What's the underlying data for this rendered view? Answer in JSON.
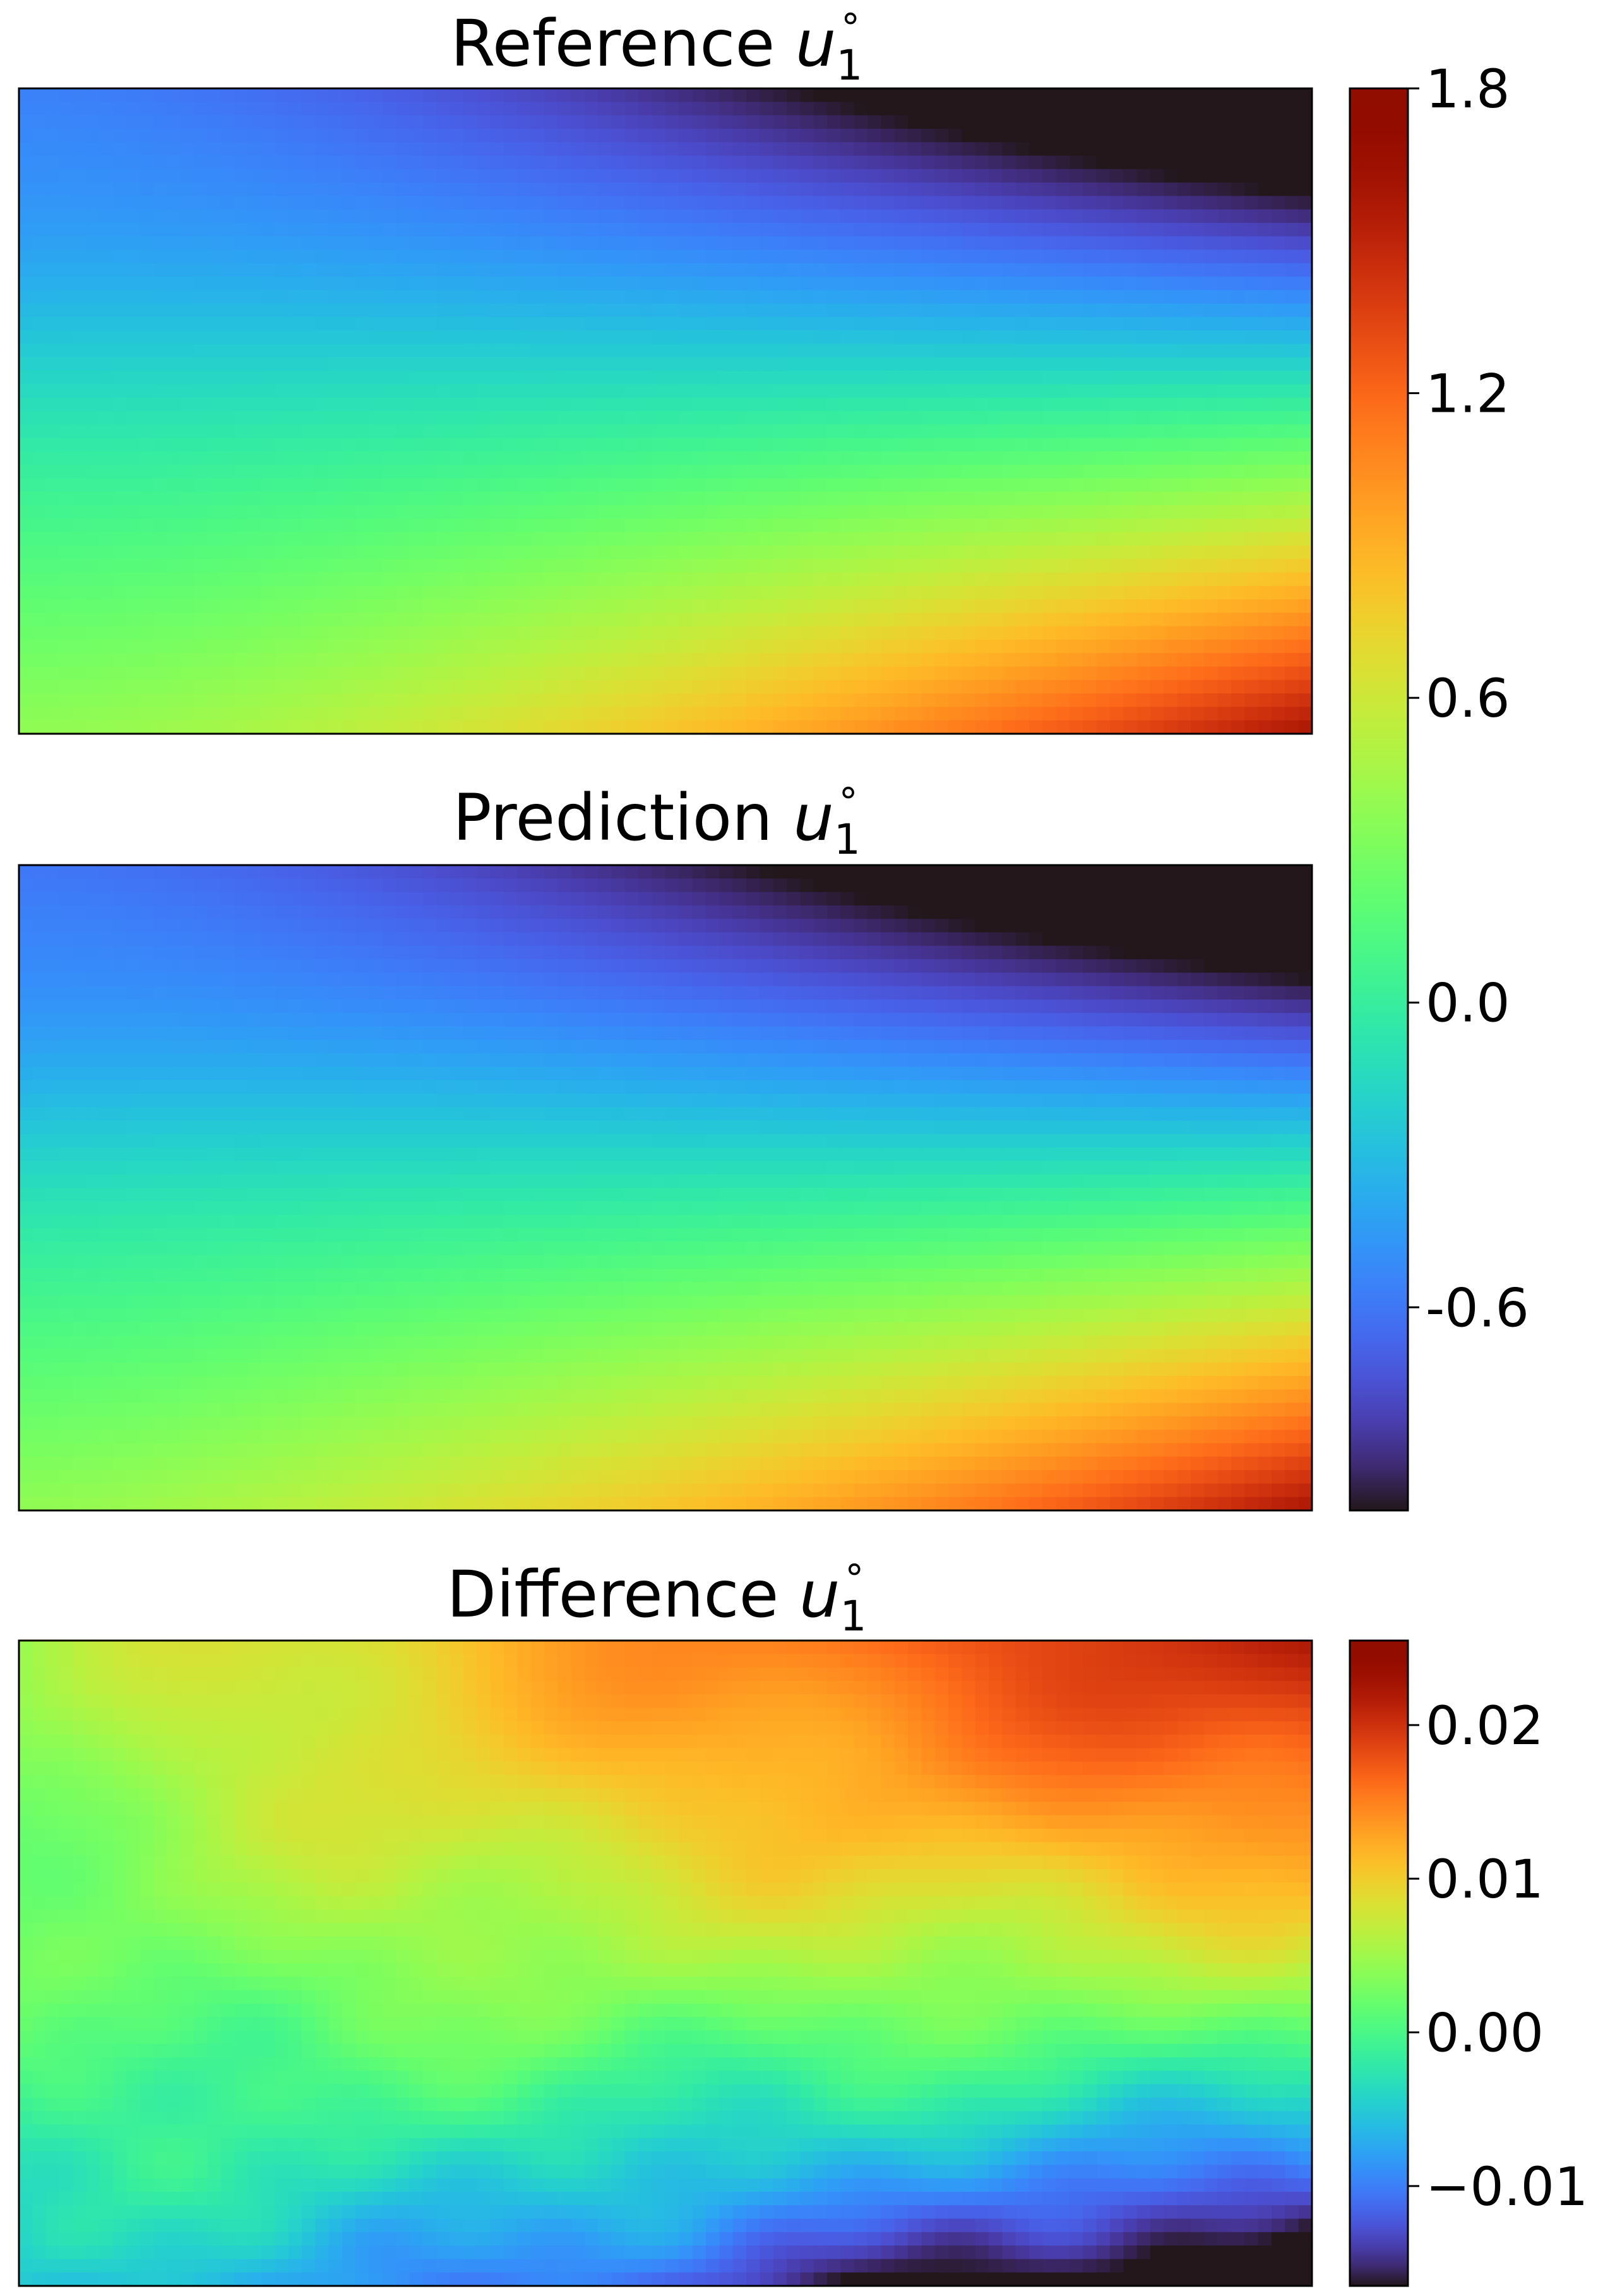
{
  "chart_data": [
    {
      "type": "heatmap",
      "title": "Reference",
      "title_symbol": "u",
      "title_subscript": "1",
      "title_superscript": "∘",
      "colormap": "turbo",
      "field": "reference",
      "vmin": -1.0,
      "vmax": 1.8,
      "colorbar": {
        "ticks": [
          1.8,
          1.2,
          0.6,
          0.0,
          -0.6
        ],
        "tick_labels": [
          "1.8",
          "1.2",
          "0.6",
          "0.0",
          "-0.6"
        ],
        "shared_with": "Prediction"
      }
    },
    {
      "type": "heatmap",
      "title": "Prediction",
      "title_symbol": "u",
      "title_subscript": "1",
      "title_superscript": "∘",
      "colormap": "turbo",
      "field": "prediction",
      "vmin": -1.0,
      "vmax": 1.8
    },
    {
      "type": "heatmap",
      "title": "Difference",
      "title_symbol": "u",
      "title_subscript": "1",
      "title_superscript": "∘",
      "colormap": "turbo",
      "field": "difference",
      "vmin": -0.0165,
      "vmax": 0.0255,
      "colorbar": {
        "ticks": [
          0.02,
          0.01,
          0.0,
          -0.01
        ],
        "tick_labels": [
          "0.02",
          "0.01",
          "0.00",
          "−0.01"
        ]
      }
    }
  ]
}
